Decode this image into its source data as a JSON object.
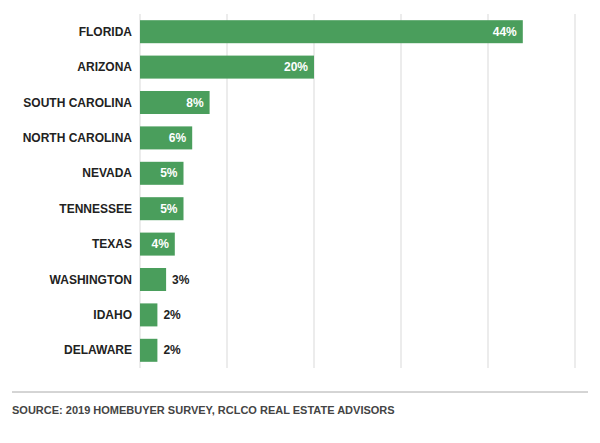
{
  "chart_data": {
    "type": "bar",
    "orientation": "horizontal",
    "categories": [
      "FLORIDA",
      "ARIZONA",
      "SOUTH CAROLINA",
      "NORTH CAROLINA",
      "NEVADA",
      "TENNESSEE",
      "TEXAS",
      "WASHINGTON",
      "IDAHO",
      "DELAWARE"
    ],
    "values": [
      44,
      20,
      8,
      6,
      5,
      5,
      4,
      3,
      2,
      2
    ],
    "value_labels": [
      "44%",
      "20%",
      "8%",
      "6%",
      "5%",
      "5%",
      "4%",
      "3%",
      "2%",
      "2%"
    ],
    "color": "#4a9e5c",
    "xlim": [
      0,
      50
    ],
    "xticks": [
      0,
      10,
      20,
      30,
      40,
      50
    ],
    "grid": true,
    "data_labels": true,
    "tick_labels": "y",
    "annotations": [
      "SOURCE: 2019 HOMEBUYER SURVEY, RCLCO REAL ESTATE ADVISORS"
    ]
  }
}
